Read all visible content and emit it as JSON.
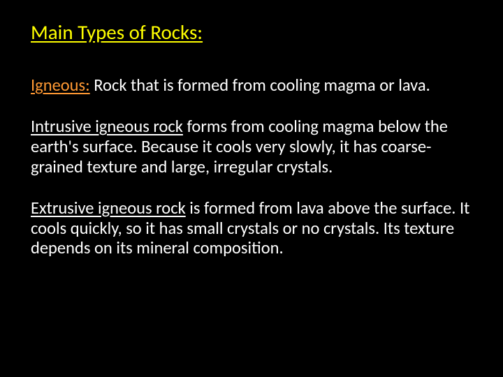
{
  "slide": {
    "title": "Main Types of Rocks:",
    "block1": {
      "term": "Igneous:",
      "rest": " Rock that is formed from cooling magma or lava."
    },
    "block2": {
      "term": "Intrusive igneous rock",
      "rest": " forms from cooling magma below the earth's surface. Because it cools very slowly, it has coarse-grained texture and large, irregular crystals."
    },
    "block3": {
      "term": "Extrusive igneous rock",
      "rest": "  is formed from lava above the surface. It cools quickly, so it has small crystals or no crystals. Its texture depends on its mineral composition."
    }
  },
  "styling": {
    "background_color": "#000000",
    "title_color": "#ffff00",
    "term_color": "#ff9933",
    "body_text_color": "#ffffff",
    "title_fontsize": 29,
    "body_fontsize": 24.5,
    "font_family": "Calibri",
    "title_underline": true,
    "term_underline": true,
    "slide_width": 720,
    "slide_height": 540
  }
}
